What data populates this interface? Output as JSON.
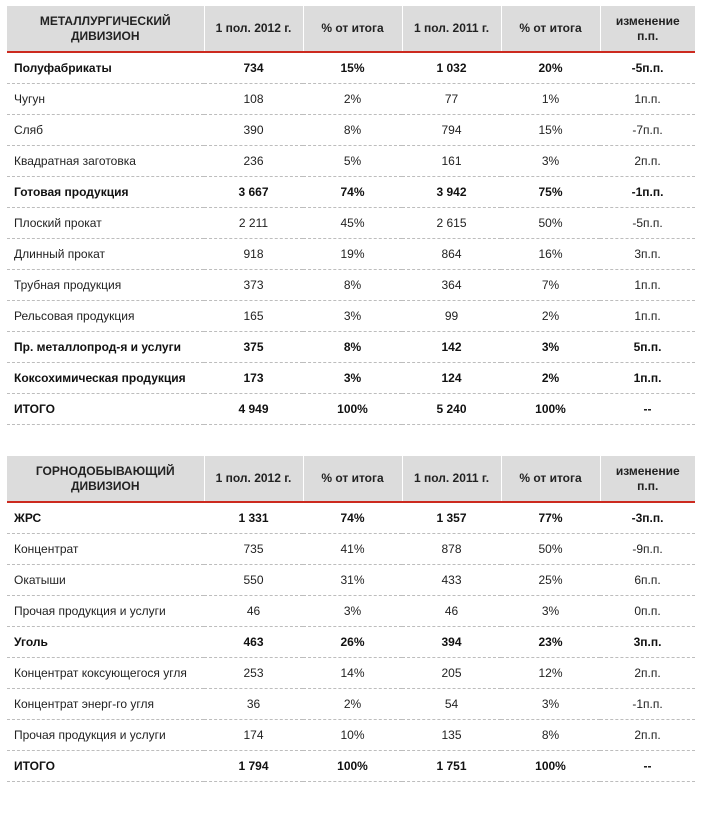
{
  "tables": [
    {
      "header": [
        "МЕТАЛЛУРГИЧЕСКИЙ ДИВИЗИОН",
        "1 пол. 2012 г.",
        "% от итога",
        "1 пол. 2011 г.",
        "% от итога",
        "изменение п.п."
      ],
      "rows": [
        {
          "bold": true,
          "cells": [
            "Полуфабрикаты",
            "734",
            "15%",
            "1 032",
            "20%",
            "-5п.п."
          ]
        },
        {
          "bold": false,
          "cells": [
            "Чугун",
            "108",
            "2%",
            "77",
            "1%",
            "1п.п."
          ]
        },
        {
          "bold": false,
          "cells": [
            "Сляб",
            "390",
            "8%",
            "794",
            "15%",
            "-7п.п."
          ]
        },
        {
          "bold": false,
          "cells": [
            "Квадратная заготовка",
            "236",
            "5%",
            "161",
            "3%",
            "2п.п."
          ]
        },
        {
          "bold": true,
          "cells": [
            "Готовая продукция",
            "3 667",
            "74%",
            "3 942",
            "75%",
            "-1п.п."
          ]
        },
        {
          "bold": false,
          "cells": [
            "Плоский прокат",
            "2 211",
            "45%",
            "2 615",
            "50%",
            "-5п.п."
          ]
        },
        {
          "bold": false,
          "cells": [
            "Длинный прокат",
            "918",
            "19%",
            "864",
            "16%",
            "3п.п."
          ]
        },
        {
          "bold": false,
          "cells": [
            "Трубная продукция",
            "373",
            "8%",
            "364",
            "7%",
            "1п.п."
          ]
        },
        {
          "bold": false,
          "cells": [
            "Рельсовая продукция",
            "165",
            "3%",
            "99",
            "2%",
            "1п.п."
          ]
        },
        {
          "bold": true,
          "cells": [
            "Пр. металлопрод-я и услуги",
            "375",
            "8%",
            "142",
            "3%",
            "5п.п."
          ]
        },
        {
          "bold": true,
          "cells": [
            "Коксохимическая продукция",
            "173",
            "3%",
            "124",
            "2%",
            "1п.п."
          ]
        },
        {
          "bold": true,
          "cells": [
            "ИТОГО",
            "4 949",
            "100%",
            "5 240",
            "100%",
            "--"
          ]
        }
      ]
    },
    {
      "header": [
        "ГОРНОДОБЫВАЮЩИЙ ДИВИЗИОН",
        "1 пол. 2012 г.",
        "% от итога",
        "1 пол. 2011 г.",
        "% от итога",
        "изменение п.п."
      ],
      "rows": [
        {
          "bold": true,
          "cells": [
            "ЖРС",
            "1 331",
            "74%",
            "1 357",
            "77%",
            "-3п.п."
          ]
        },
        {
          "bold": false,
          "cells": [
            "Концентрат",
            "735",
            "41%",
            "878",
            "50%",
            "-9п.п."
          ]
        },
        {
          "bold": false,
          "cells": [
            "Окатыши",
            "550",
            "31%",
            "433",
            "25%",
            "6п.п."
          ]
        },
        {
          "bold": false,
          "cells": [
            "Прочая продукция и услуги",
            "46",
            "3%",
            "46",
            "3%",
            "0п.п."
          ]
        },
        {
          "bold": true,
          "cells": [
            "Уголь",
            "463",
            "26%",
            "394",
            "23%",
            "3п.п."
          ]
        },
        {
          "bold": false,
          "cells": [
            "Концентрат коксующегося угля",
            "253",
            "14%",
            "205",
            "12%",
            "2п.п."
          ]
        },
        {
          "bold": false,
          "cells": [
            "Концентрат энерг-го угля",
            "36",
            "2%",
            "54",
            "3%",
            "-1п.п."
          ]
        },
        {
          "bold": false,
          "cells": [
            "Прочая продукция и услуги",
            "174",
            "10%",
            "135",
            "8%",
            "2п.п."
          ]
        },
        {
          "bold": true,
          "cells": [
            "ИТОГО",
            "1 794",
            "100%",
            "1 751",
            "100%",
            "--"
          ]
        }
      ]
    }
  ]
}
